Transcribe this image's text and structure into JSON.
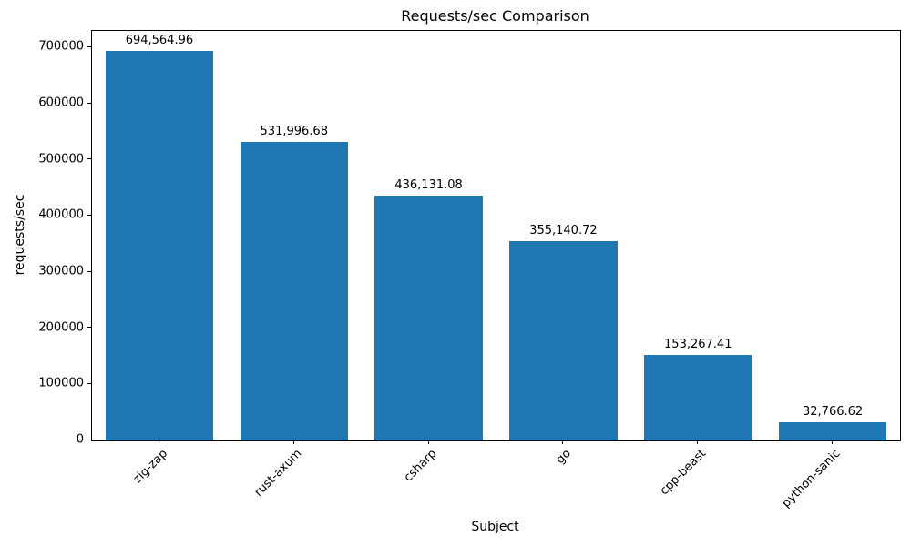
{
  "chart_data": {
    "type": "bar",
    "title": "Requests/sec Comparison",
    "xlabel": "Subject",
    "ylabel": "requests/sec",
    "categories": [
      "zig-zap",
      "rust-axum",
      "csharp",
      "go",
      "cpp-beast",
      "python-sanic"
    ],
    "values": [
      694564.96,
      531996.68,
      436131.08,
      355140.72,
      153267.41,
      32766.62
    ],
    "value_labels": [
      "694,564.96",
      "531,996.68",
      "436,131.08",
      "355,140.72",
      "153,267.41",
      "32,766.62"
    ],
    "yticks": [
      0,
      100000,
      200000,
      300000,
      400000,
      500000,
      600000,
      700000
    ],
    "ytick_labels": [
      "0",
      "100000",
      "200000",
      "300000",
      "400000",
      "500000",
      "600000",
      "700000"
    ],
    "ylim": [
      0,
      730000
    ],
    "bar_color": "#1f77b4",
    "bar_width_ratio": 0.8,
    "grid": false,
    "legend": null,
    "tick_label_rotation": 45
  }
}
